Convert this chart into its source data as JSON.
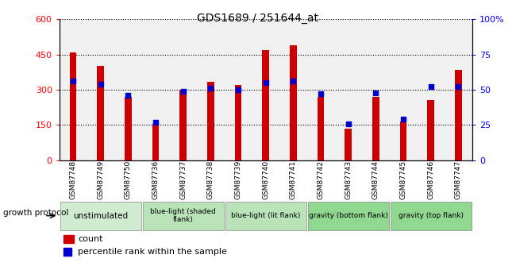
{
  "title": "GDS1689 / 251644_at",
  "samples": [
    "GSM87748",
    "GSM87749",
    "GSM87750",
    "GSM87736",
    "GSM87737",
    "GSM87738",
    "GSM87739",
    "GSM87740",
    "GSM87741",
    "GSM87742",
    "GSM87743",
    "GSM87744",
    "GSM87745",
    "GSM87746",
    "GSM87747"
  ],
  "count_values": [
    460,
    400,
    270,
    155,
    300,
    335,
    320,
    470,
    490,
    270,
    135,
    270,
    165,
    255,
    385
  ],
  "percentile_values": [
    56,
    54,
    46,
    27,
    49,
    51,
    50,
    55,
    56,
    47,
    26,
    48,
    29,
    52,
    52
  ],
  "groups": [
    {
      "label": "unstimulated",
      "start": 0,
      "end": 3,
      "color": "#d0ecd0"
    },
    {
      "label": "blue-light (shaded\nflank)",
      "start": 3,
      "end": 6,
      "color": "#b8e4b8"
    },
    {
      "label": "blue-light (lit flank)",
      "start": 6,
      "end": 9,
      "color": "#b8e4b8"
    },
    {
      "label": "gravity (bottom flank)",
      "start": 9,
      "end": 12,
      "color": "#90d890"
    },
    {
      "label": "gravity (top flank)",
      "start": 12,
      "end": 15,
      "color": "#90d890"
    }
  ],
  "ylim_left": [
    0,
    600
  ],
  "ylim_right": [
    0,
    100
  ],
  "yticks_left": [
    0,
    150,
    300,
    450,
    600
  ],
  "yticks_right": [
    0,
    25,
    50,
    75,
    100
  ],
  "bar_color": "#cc0000",
  "dot_color": "#0000cc",
  "plot_bg_color": "#f0f0f0",
  "growth_protocol_label": "growth protocol",
  "legend_count": "count",
  "legend_percentile": "percentile rank within the sample",
  "bar_width": 0.25
}
